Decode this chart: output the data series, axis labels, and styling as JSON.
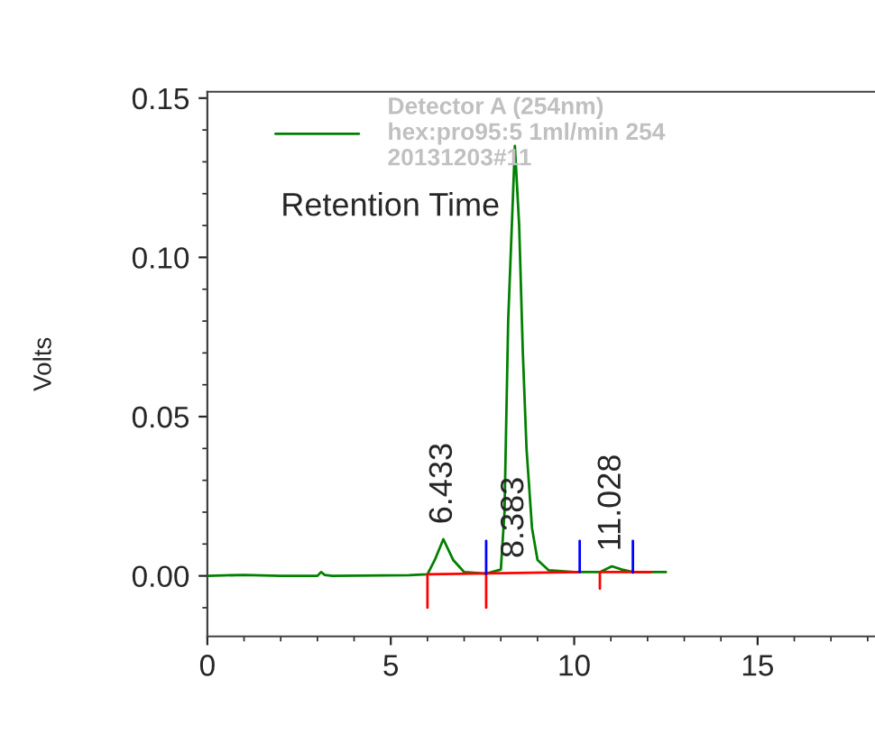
{
  "chart_data": {
    "type": "line",
    "ylabel": "Volts",
    "series": [
      {
        "name": "Detector A (254nm)\nhex:pro95:5 1ml/min 254\n20131203#11",
        "color": "#008000",
        "x": [
          0,
          1.0,
          2.0,
          3.0,
          3.1,
          3.2,
          3.4,
          5.5,
          6.0,
          6.2,
          6.433,
          6.7,
          7.0,
          7.6,
          8.0,
          8.1,
          8.2,
          8.383,
          8.5,
          8.6,
          8.7,
          8.85,
          9.0,
          9.3,
          10.0,
          10.7,
          11.028,
          11.3,
          11.6,
          12.5
        ],
        "values": [
          0,
          0.0003,
          0,
          0,
          0.0012,
          0.0003,
          0,
          0.0002,
          0.0005,
          0.005,
          0.0115,
          0.005,
          0.0012,
          0.0007,
          0.002,
          0.02,
          0.08,
          0.135,
          0.11,
          0.07,
          0.04,
          0.015,
          0.005,
          0.0018,
          0.0012,
          0.0012,
          0.003,
          0.002,
          0.0012,
          0.0012
        ]
      },
      {
        "color": "#ff0000",
        "x": [
          6.0,
          6.0,
          10.15
        ],
        "values": [
          -0.01,
          0.0005,
          0.0012
        ]
      },
      {
        "color": "#ff0000",
        "x": [
          7.6,
          7.6
        ],
        "values": [
          -0.01,
          0.0008
        ]
      },
      {
        "color": "#ff0000",
        "x": [
          10.7,
          10.7,
          12.1
        ],
        "values": [
          -0.004,
          0.0012,
          0.0012
        ]
      },
      {
        "color": "#0000ff",
        "x": [
          7.6,
          7.6
        ],
        "values": [
          0.0007,
          0.011
        ]
      },
      {
        "color": "#0000ff",
        "x": [
          10.15,
          10.15
        ],
        "values": [
          0.0012,
          0.011
        ]
      },
      {
        "color": "#0000ff",
        "x": [
          11.6,
          11.6
        ],
        "values": [
          0.001,
          0.011
        ]
      }
    ],
    "annotations": [
      {
        "text": "6.433",
        "x": 6.433,
        "y": 0.0115
      },
      {
        "text": "8.383",
        "x": 8.383,
        "y": 0.0008
      },
      {
        "text": "11.028",
        "x": 11.028,
        "y": 0.003
      },
      "Retention Time"
    ],
    "xlim": [
      0,
      18.2
    ],
    "xticks": [
      0,
      5,
      10,
      15
    ],
    "ylim": [
      -0.019,
      0.152
    ],
    "yticks": [
      {
        "value": 0.0,
        "label": "0.00"
      },
      {
        "value": 0.05,
        "label": "0.05"
      },
      {
        "value": 0.1,
        "label": "0.10"
      },
      {
        "value": 0.15,
        "label": "0.15"
      }
    ],
    "legend": "top",
    "grid": false
  }
}
